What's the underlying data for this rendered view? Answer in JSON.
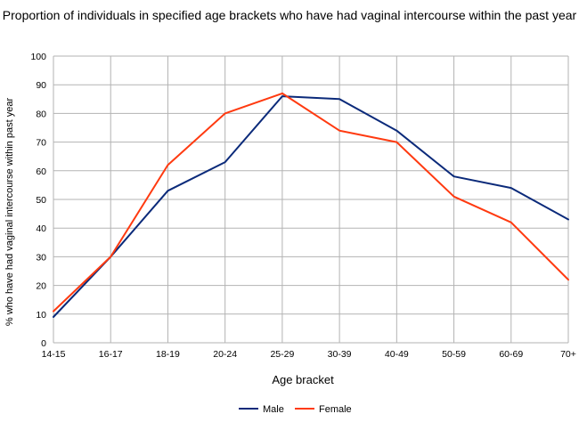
{
  "chart_data": {
    "type": "line",
    "title": "Proportion of individuals in specified age brackets who have had vaginal intercourse within the past year",
    "xlabel": "Age bracket",
    "ylabel": "% who have had vaginal intercourse within past year",
    "categories": [
      "14-15",
      "16-17",
      "18-19",
      "20-24",
      "25-29",
      "30-39",
      "40-49",
      "50-59",
      "60-69",
      "70+"
    ],
    "ylim": [
      0,
      100
    ],
    "yticks": [
      0,
      10,
      20,
      30,
      40,
      50,
      60,
      70,
      80,
      90,
      100
    ],
    "grid": true,
    "legend_position": "bottom",
    "series": [
      {
        "name": "Male",
        "color": "#0b2a7a",
        "values": [
          9,
          30,
          53,
          63,
          86,
          85,
          74,
          58,
          54,
          43
        ]
      },
      {
        "name": "Female",
        "color": "#ff3a10",
        "values": [
          11,
          30,
          62,
          80,
          87,
          74,
          70,
          51,
          42,
          22
        ]
      }
    ]
  }
}
